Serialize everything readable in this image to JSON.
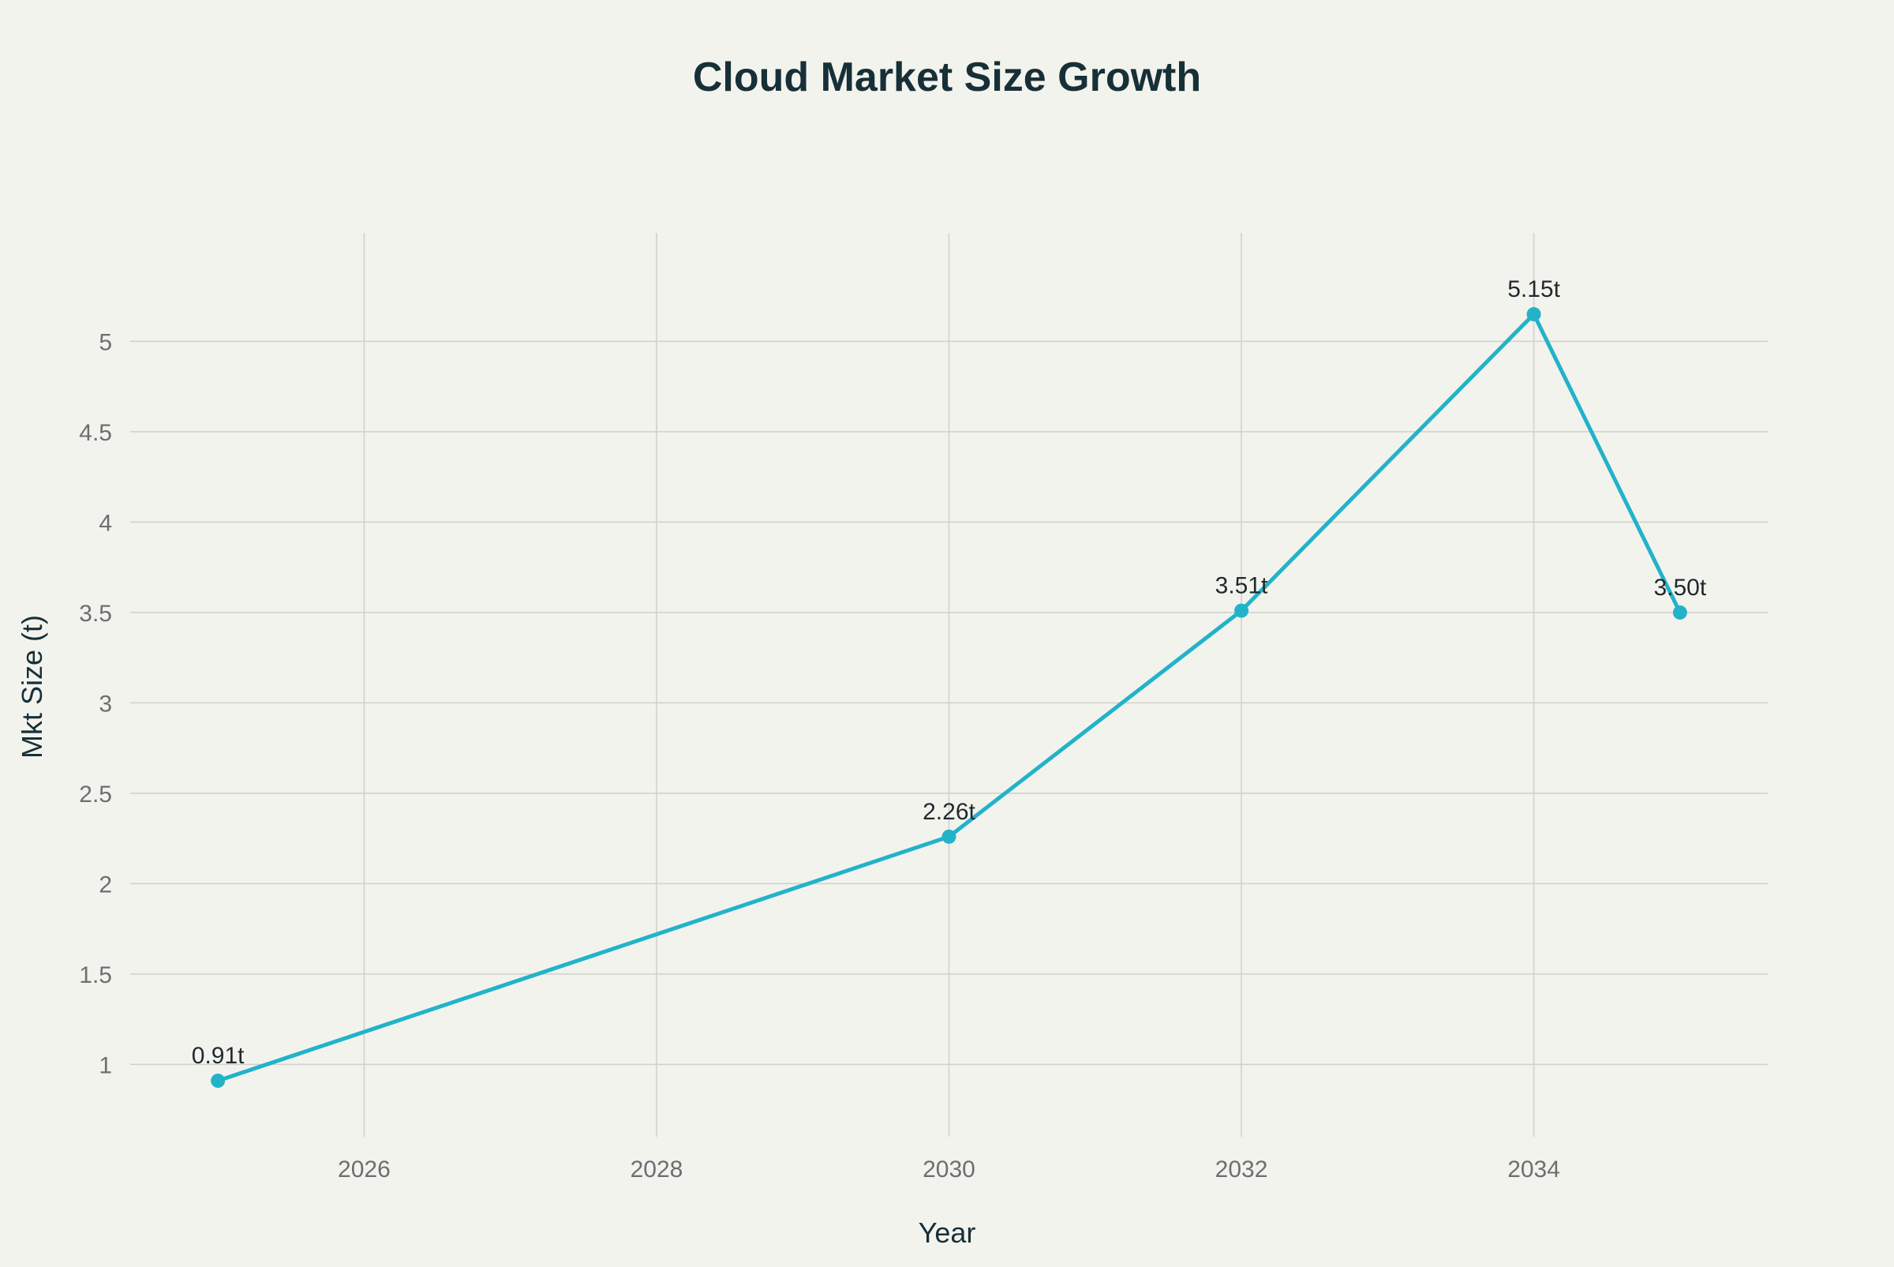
{
  "chart_data": {
    "type": "line",
    "title": "Cloud Market Size Growth",
    "xlabel": "Year",
    "ylabel": "Mkt Size (t)",
    "x": [
      2025,
      2030,
      2032,
      2034,
      2035
    ],
    "series": [
      {
        "values": [
          0.91,
          2.26,
          3.51,
          5.15,
          3.5
        ],
        "data_labels": [
          "0.91t",
          "2.26t",
          "3.51t",
          "5.15t",
          "3.50t"
        ],
        "color": "#22b3c9"
      }
    ],
    "xticks": [
      2026,
      2028,
      2030,
      2032,
      2034
    ],
    "xtick_labels": [
      "2026",
      "2028",
      "2030",
      "2032",
      "2034"
    ],
    "yticks": [
      1,
      1.5,
      2,
      2.5,
      3,
      3.5,
      4,
      4.5,
      5
    ],
    "ytick_labels": [
      "1",
      "1.5",
      "2",
      "2.5",
      "3",
      "3.5",
      "4",
      "4.5",
      "5"
    ],
    "xlim": [
      2024.4,
      2035.6
    ],
    "ylim": [
      0.6,
      5.6
    ],
    "grid": true,
    "colors": {
      "background": "#f3f3ee",
      "grid": "#cfcfcb",
      "title": "#173038",
      "tick": "#6b6f70"
    }
  }
}
